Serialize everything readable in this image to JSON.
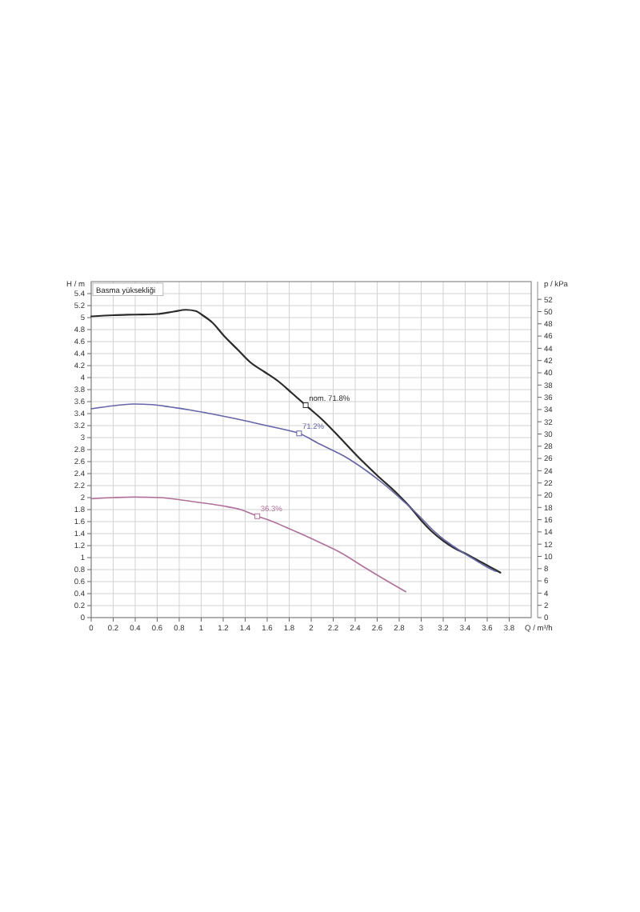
{
  "chart_data": {
    "type": "line",
    "title": "Basma yüksekliği",
    "xlabel": "Q / m³/h",
    "ylabel": "H / m",
    "y2label": "p / kPa",
    "xlim": [
      0,
      4
    ],
    "xticks": [
      0,
      0.2,
      0.4,
      0.6,
      0.8,
      1,
      1.2,
      1.4,
      1.6,
      1.8,
      2,
      2.2,
      2.4,
      2.6,
      2.8,
      3,
      3.2,
      3.4,
      3.6,
      3.8
    ],
    "ylim": [
      0,
      5.6
    ],
    "yticks": [
      0,
      0.2,
      0.4,
      0.6,
      0.8,
      1,
      1.2,
      1.4,
      1.6,
      1.8,
      2,
      2.2,
      2.4,
      2.6,
      2.8,
      3,
      3.2,
      3.4,
      3.6,
      3.8,
      4,
      4.2,
      4.4,
      4.6,
      4.8,
      5,
      5.2,
      5.4
    ],
    "y2lim": [
      0,
      54.9
    ],
    "y2ticks": [
      0,
      2,
      4,
      6,
      8,
      10,
      12,
      14,
      16,
      18,
      20,
      22,
      24,
      26,
      28,
      30,
      32,
      34,
      36,
      38,
      40,
      42,
      44,
      46,
      48,
      50,
      52
    ],
    "grid": true,
    "series": [
      {
        "color": "#2b2b2b",
        "x": [
          0,
          0.2,
          0.4,
          0.6,
          0.75,
          0.86,
          0.95,
          1.02,
          1.1,
          1.21,
          1.33,
          1.45,
          1.58,
          1.7,
          1.82,
          1.95,
          2.1,
          2.25,
          2.42,
          2.6,
          2.79,
          2.9,
          3,
          3.1,
          3.2,
          3.3,
          3.42,
          3.55,
          3.65,
          3.72
        ],
        "values": [
          5.02,
          5.04,
          5.05,
          5.06,
          5.1,
          5.13,
          5.11,
          5.03,
          4.92,
          4.69,
          4.47,
          4.25,
          4.09,
          3.94,
          3.75,
          3.54,
          3.3,
          3.02,
          2.69,
          2.37,
          2.05,
          1.84,
          1.62,
          1.43,
          1.28,
          1.16,
          1.05,
          0.92,
          0.82,
          0.75
        ]
      },
      {
        "color": "#6464a8",
        "x": [
          0,
          0.2,
          0.38,
          0.55,
          0.72,
          0.9,
          1.11,
          1.3,
          1.45,
          1.62,
          1.79,
          1.89,
          2.08,
          2.3,
          2.5,
          2.65,
          2.79,
          2.9,
          3,
          3.1,
          3.2,
          3.3,
          3.4,
          3.5,
          3.6,
          3.68
        ],
        "values": [
          3.48,
          3.53,
          3.56,
          3.55,
          3.51,
          3.46,
          3.39,
          3.32,
          3.26,
          3.19,
          3.12,
          3.07,
          2.89,
          2.69,
          2.45,
          2.24,
          2.02,
          1.84,
          1.66,
          1.47,
          1.31,
          1.18,
          1.06,
          0.95,
          0.84,
          0.77
        ]
      },
      {
        "color": "#b0709a",
        "x": [
          0,
          0.2,
          0.38,
          0.63,
          0.82,
          1.02,
          1.2,
          1.36,
          1.51,
          1.65,
          1.79,
          1.94,
          2.08,
          2.26,
          2.5,
          2.7,
          2.86
        ],
        "values": [
          1.98,
          2,
          2.01,
          2,
          1.96,
          1.91,
          1.86,
          1.8,
          1.69,
          1.6,
          1.49,
          1.37,
          1.25,
          1.09,
          0.82,
          0.6,
          0.43
        ]
      }
    ],
    "annotations": [
      {
        "text": "nom. 71.8%",
        "x": 1.95,
        "y": 3.54
      },
      {
        "text": "71.2%",
        "x": 1.89,
        "y": 3.07
      },
      {
        "text": "36.3%",
        "x": 1.51,
        "y": 1.69
      }
    ]
  }
}
